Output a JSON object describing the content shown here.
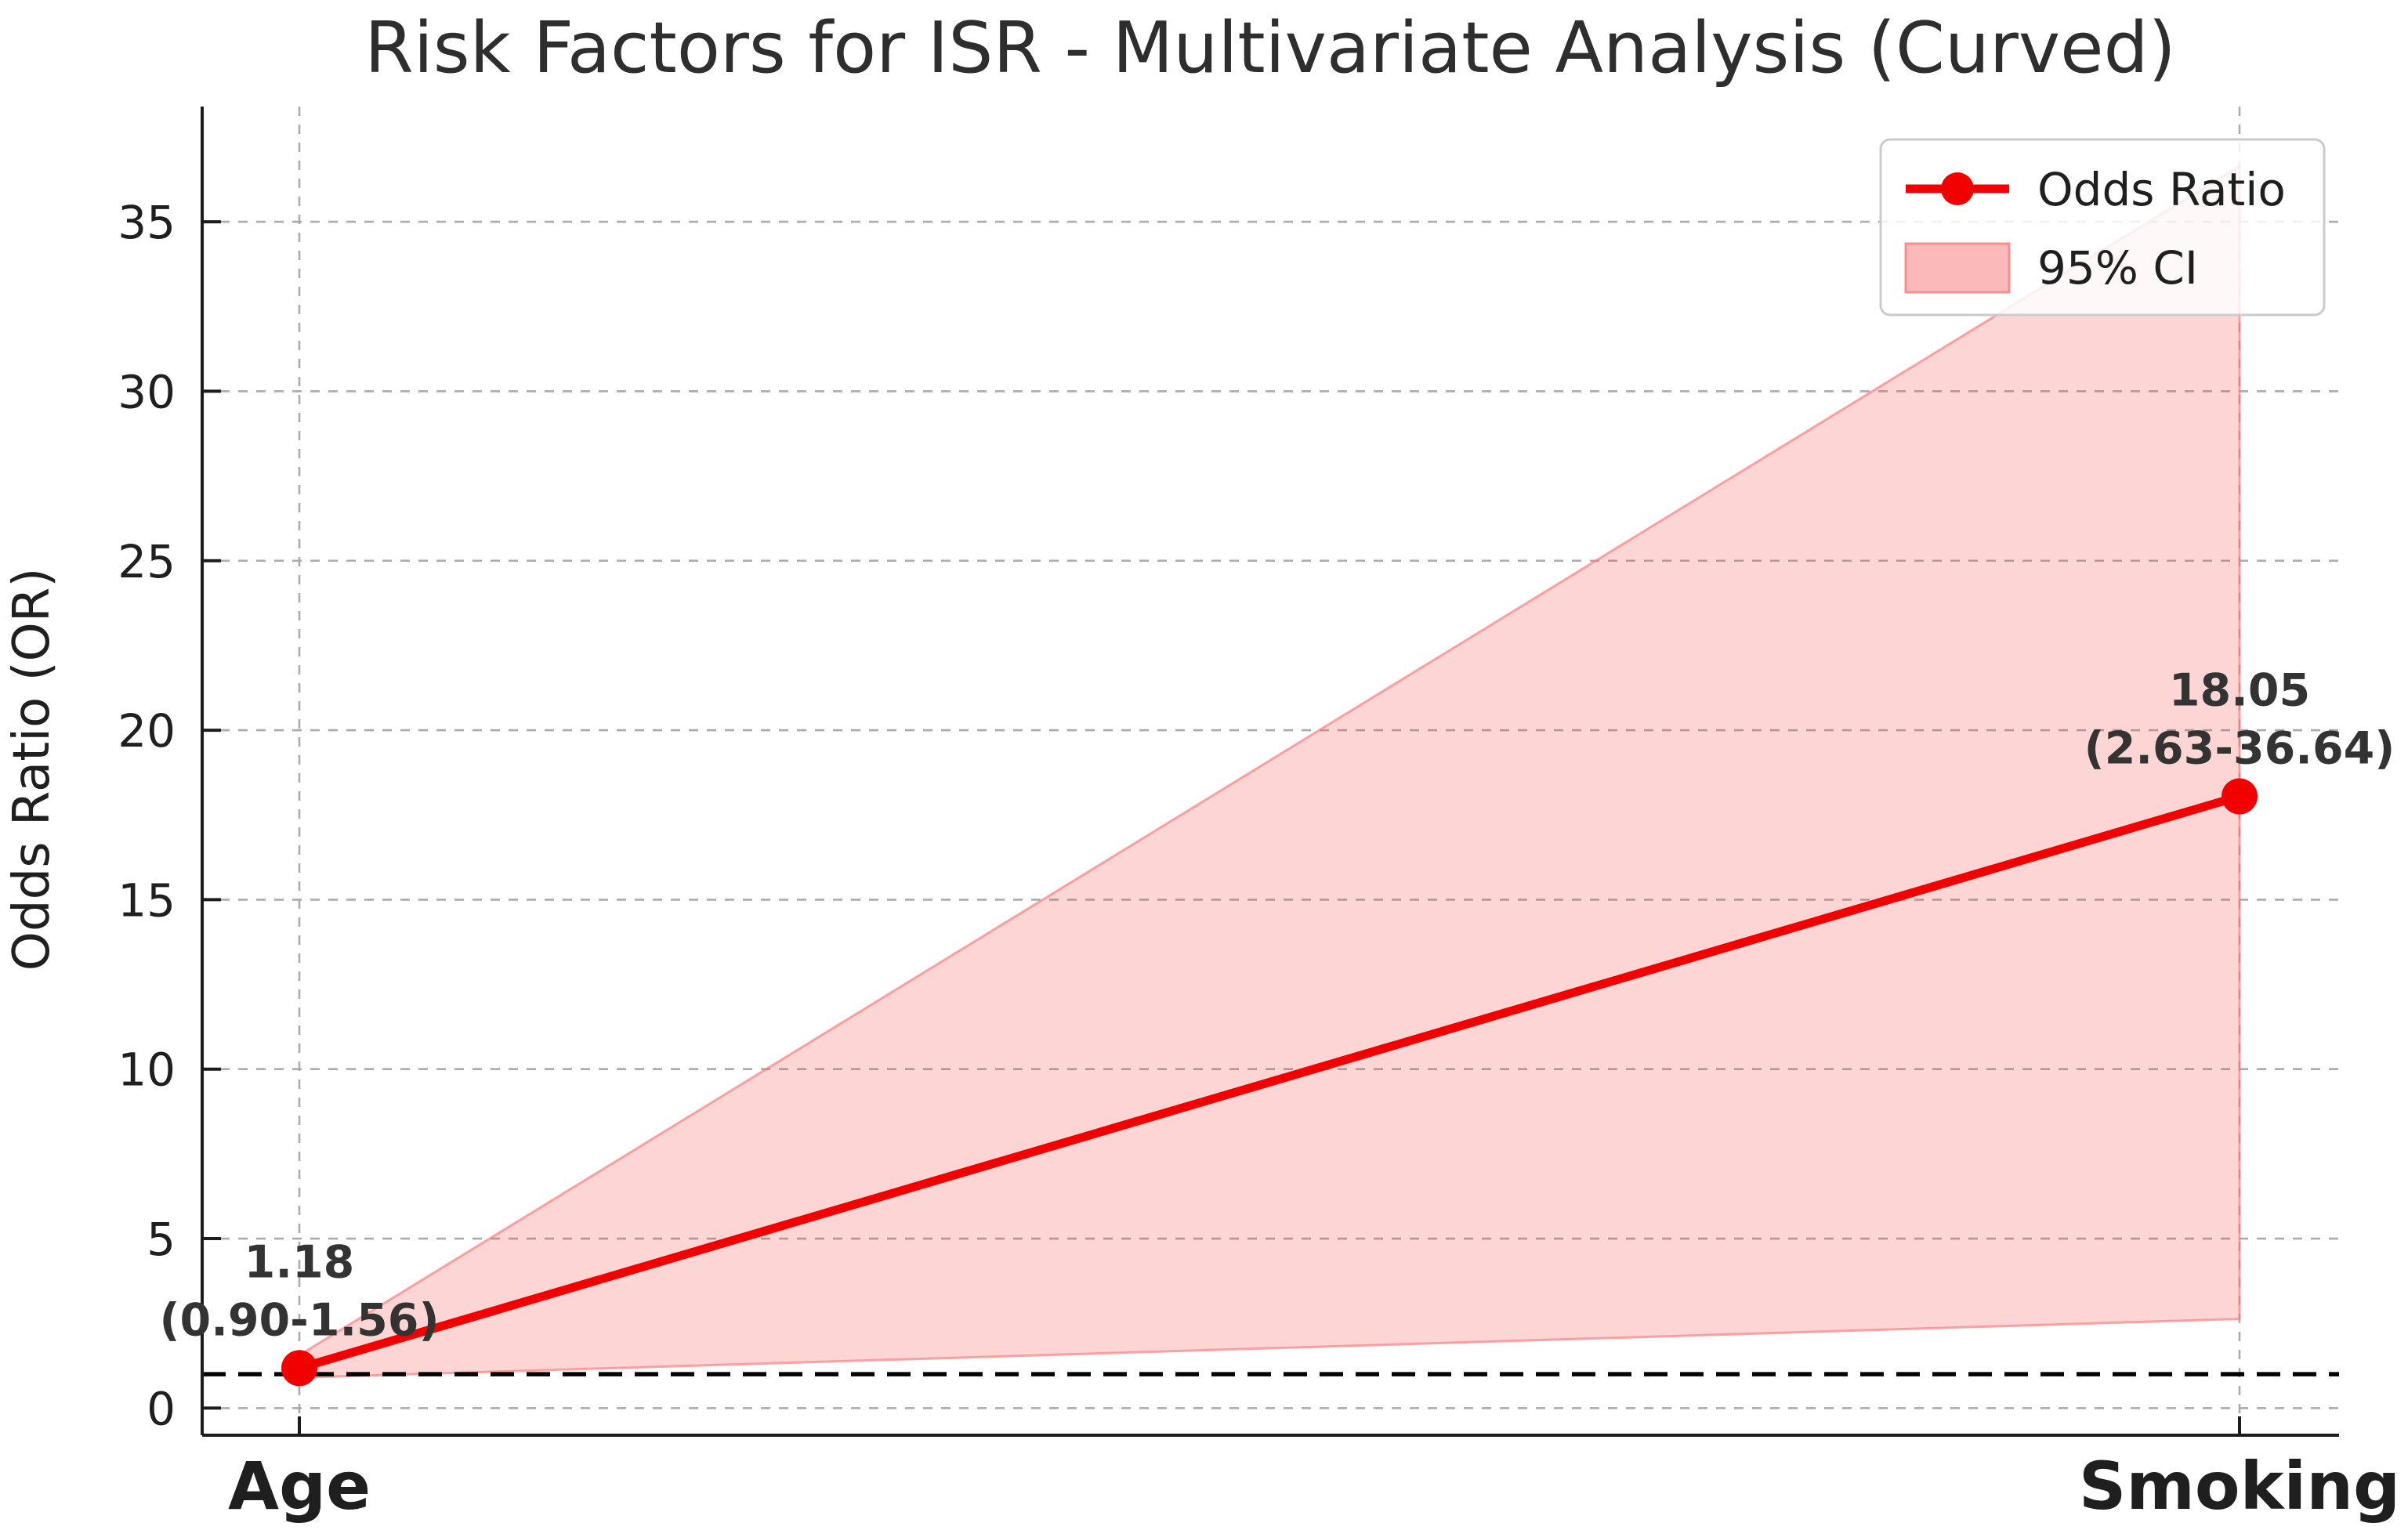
{
  "title": "Risk Factors for ISR - Multivariate Analysis (Curved)",
  "chart_data": {
    "type": "line",
    "title": "Risk Factors for ISR - Multivariate Analysis (Curved)",
    "xlabel": "",
    "ylabel": "Odds Ratio (OR)",
    "categories": [
      "Age",
      "Smoking"
    ],
    "series": [
      {
        "name": "Odds Ratio",
        "values": [
          1.18,
          18.05
        ]
      }
    ],
    "ci_lower": [
      0.9,
      2.63
    ],
    "ci_upper": [
      1.56,
      36.64
    ],
    "annotations": [
      {
        "or_label": "1.18",
        "ci_label": "(0.90-1.56)"
      },
      {
        "or_label": "18.05",
        "ci_label": "(2.63-36.64)"
      }
    ],
    "reference_line_y": 1,
    "yticks": [
      0,
      5,
      10,
      15,
      20,
      25,
      30,
      35
    ],
    "ylim": [
      -0.8,
      38.4
    ],
    "grid": true,
    "legend": {
      "position": "upper right",
      "entries": [
        "Odds Ratio",
        "95% CI"
      ]
    },
    "colors": {
      "line": "#f20000",
      "ci_fill": "#fcc9c9",
      "grid": "#ababab",
      "reference_line": "#000000",
      "text": "#1f1f1f"
    }
  }
}
